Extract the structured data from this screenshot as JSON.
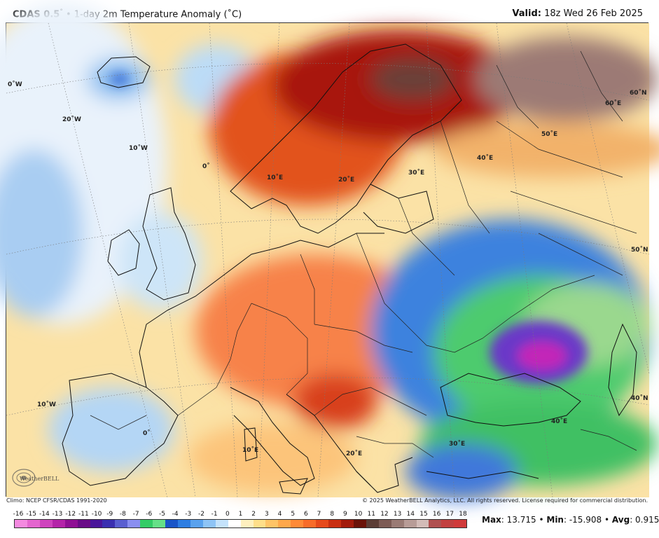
{
  "header": {
    "model": "CDAS 0.5",
    "degree_mark": "°",
    "separator": "•",
    "title": "1-day 2m Temperature Anomaly (˚C)",
    "valid_label": "Valid:",
    "valid_time": "18z Wed 26 Feb 2025"
  },
  "grid_labels": {
    "lon_w": [
      "0˚W",
      "20˚W",
      "10˚W",
      "10˚W",
      "0˚",
      "0˚"
    ],
    "lon_e": [
      "10˚E",
      "20˚E",
      "30˚E",
      "40˚E",
      "50˚E",
      "60˚E",
      "10˚E",
      "20˚E",
      "30˚E",
      "40˚E"
    ],
    "lat_n": [
      "60˚N",
      "50˚N",
      "40˚N"
    ]
  },
  "footer": {
    "climo": "Climo: NCEP CFSR/CDAS 1991-2020",
    "copyright": "© 2025 WeatherBELL Analytics, LLC. All rights reserved. License required for commercial distribution."
  },
  "logo": {
    "text": "WeatherBELL",
    "icon": "weatherbell-swirl-icon"
  },
  "legend": {
    "ticks": [
      "-16",
      "-15",
      "-14",
      "-13",
      "-12",
      "-11",
      "-10",
      "-9",
      "-8",
      "-7",
      "-6",
      "-5",
      "-4",
      "-3",
      "-2",
      "-1",
      "0",
      "1",
      "2",
      "3",
      "4",
      "5",
      "6",
      "7",
      "8",
      "9",
      "10",
      "11",
      "12",
      "13",
      "14",
      "15",
      "16",
      "17",
      "18"
    ],
    "colors": [
      "#f48ae0",
      "#e466cf",
      "#cf43be",
      "#b424a9",
      "#8f1094",
      "#6a0d87",
      "#4a169a",
      "#3a2fb0",
      "#5a5fd0",
      "#8a8ff0",
      "#33cc66",
      "#66e088",
      "#1a55c8",
      "#2f7ee2",
      "#5aa2ee",
      "#8ec4f6",
      "#c4e2fb",
      "#ffffff",
      "#fff0bf",
      "#ffdf8a",
      "#ffc467",
      "#ffa84c",
      "#ff8a38",
      "#f86c2a",
      "#e64a1c",
      "#c92f12",
      "#a31b0c",
      "#6b1209",
      "#5c3d36",
      "#7d5b55",
      "#9a7b75",
      "#b89c97",
      "#d3bcb8",
      "#b05050",
      "#c24040",
      "#d03a3a"
    ]
  },
  "stats": {
    "max_label": "Max",
    "max": "13.715",
    "min_label": "Min",
    "min": "-15.908",
    "avg_label": "Avg",
    "avg": "0.915",
    "sep": "•"
  }
}
